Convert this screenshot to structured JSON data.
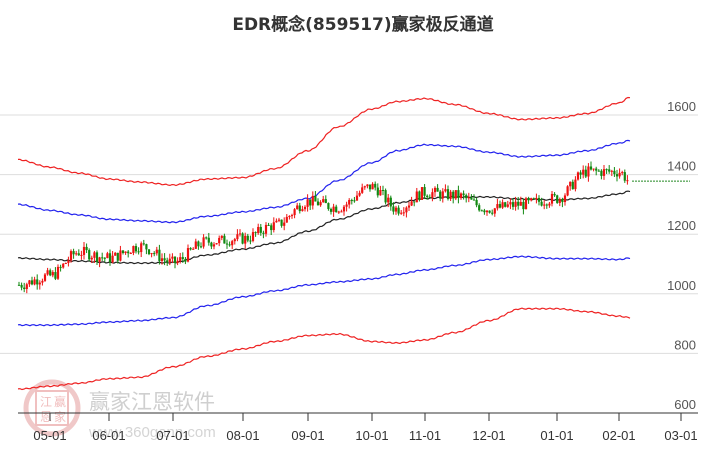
{
  "title": "EDR概念(859517)赢家极反通道",
  "watermark": {
    "brand": "赢家江恩软件",
    "url": "www.360gann.com",
    "seal": [
      "江",
      "赢",
      "恩",
      "家"
    ]
  },
  "colors": {
    "up": "#ee1111",
    "down": "#118811",
    "outer_band": "#ee2222",
    "inner_band": "#2222ee",
    "middle": "#222222",
    "last_price": "#228822",
    "grid": "#dddddd",
    "axis": "#333333"
  },
  "chart_data": {
    "type": "candlestick",
    "title": "EDR概念(859517)赢家极反通道",
    "xlabel": "",
    "ylabel": "",
    "ylim": [
      600,
      1700
    ],
    "y_ticks": [
      600,
      800,
      1000,
      1200,
      1400,
      1600
    ],
    "x_ticks": [
      "05-01",
      "06-01",
      "07-01",
      "08-01",
      "09-01",
      "10-01",
      "11-01",
      "12-01",
      "01-01",
      "02-01",
      "03-01"
    ],
    "grid": true,
    "legend": "none",
    "last_price": 1378,
    "series": [
      {
        "name": "upper_outer_band",
        "color": "red",
        "x": [
          "04-18",
          "05-01",
          "05-15",
          "06-01",
          "06-15",
          "07-01",
          "07-15",
          "08-01",
          "08-15",
          "09-01",
          "09-15",
          "10-01",
          "10-15",
          "11-01",
          "11-15",
          "12-01",
          "12-15",
          "01-01",
          "01-15",
          "02-01",
          "02-10"
        ],
        "values": [
          1450,
          1425,
          1405,
          1385,
          1375,
          1365,
          1385,
          1390,
          1420,
          1480,
          1560,
          1620,
          1645,
          1655,
          1635,
          1605,
          1585,
          1590,
          1605,
          1640,
          1660
        ]
      },
      {
        "name": "upper_inner_band",
        "color": "blue",
        "x": [
          "04-18",
          "05-01",
          "05-15",
          "06-01",
          "06-15",
          "07-01",
          "07-15",
          "08-01",
          "08-15",
          "09-01",
          "09-15",
          "10-01",
          "10-15",
          "11-01",
          "11-15",
          "12-01",
          "12-15",
          "01-01",
          "01-15",
          "02-01",
          "02-10"
        ],
        "values": [
          1300,
          1280,
          1265,
          1250,
          1245,
          1240,
          1260,
          1275,
          1290,
          1320,
          1380,
          1440,
          1480,
          1500,
          1495,
          1475,
          1460,
          1465,
          1480,
          1505,
          1515
        ]
      },
      {
        "name": "middle_line",
        "color": "black",
        "x": [
          "04-18",
          "05-01",
          "05-15",
          "06-01",
          "06-15",
          "07-01",
          "07-15",
          "08-01",
          "08-15",
          "09-01",
          "09-15",
          "10-01",
          "10-15",
          "11-01",
          "11-15",
          "12-01",
          "12-15",
          "01-01",
          "01-15",
          "02-01",
          "02-10"
        ],
        "values": [
          1120,
          1115,
          1110,
          1105,
          1103,
          1105,
          1130,
          1150,
          1170,
          1210,
          1250,
          1285,
          1305,
          1320,
          1325,
          1325,
          1318,
          1315,
          1320,
          1335,
          1345
        ]
      },
      {
        "name": "lower_inner_band",
        "color": "blue",
        "x": [
          "04-18",
          "05-01",
          "05-15",
          "06-01",
          "06-15",
          "07-01",
          "07-15",
          "08-01",
          "08-15",
          "09-01",
          "09-15",
          "10-01",
          "10-15",
          "11-01",
          "11-15",
          "12-01",
          "12-15",
          "01-01",
          "01-15",
          "02-01",
          "02-10"
        ],
        "values": [
          895,
          895,
          898,
          905,
          910,
          920,
          960,
          990,
          1010,
          1030,
          1040,
          1050,
          1065,
          1080,
          1095,
          1115,
          1125,
          1118,
          1118,
          1115,
          1120
        ]
      },
      {
        "name": "lower_outer_band",
        "color": "red",
        "x": [
          "04-18",
          "05-01",
          "05-15",
          "06-01",
          "06-15",
          "07-01",
          "07-15",
          "08-01",
          "08-15",
          "09-01",
          "09-15",
          "10-01",
          "10-15",
          "11-01",
          "11-15",
          "12-01",
          "12-15",
          "01-01",
          "01-15",
          "02-01",
          "02-10"
        ],
        "values": [
          680,
          690,
          700,
          715,
          720,
          755,
          790,
          815,
          840,
          860,
          865,
          840,
          835,
          845,
          870,
          910,
          950,
          950,
          940,
          925,
          920
        ]
      },
      {
        "name": "price_close_approx",
        "color": "candles",
        "x": [
          "04-18",
          "05-01",
          "05-15",
          "06-01",
          "06-15",
          "07-01",
          "07-15",
          "08-01",
          "08-15",
          "09-01",
          "09-15",
          "10-01",
          "10-15",
          "11-01",
          "11-15",
          "12-01",
          "12-15",
          "01-01",
          "01-15",
          "02-01",
          "02-10"
        ],
        "values": [
          1030,
          1060,
          1140,
          1120,
          1160,
          1105,
          1175,
          1185,
          1230,
          1310,
          1290,
          1360,
          1285,
          1340,
          1330,
          1285,
          1300,
          1320,
          1410,
          1410,
          1378
        ]
      }
    ]
  }
}
